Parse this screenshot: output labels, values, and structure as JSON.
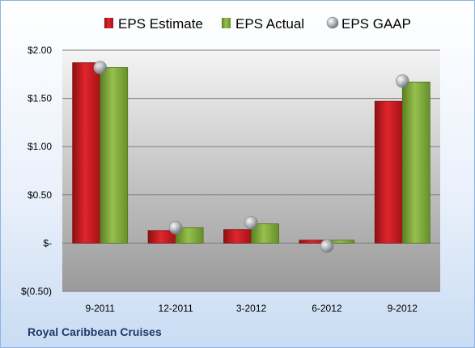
{
  "chart_data": {
    "type": "bar",
    "categories": [
      "9-2011",
      "12-2011",
      "3-2012",
      "6-2012",
      "9-2012"
    ],
    "series": [
      {
        "name": "EPS Estimate",
        "values": [
          1.87,
          0.13,
          0.14,
          0.03,
          1.47
        ],
        "color": "#c0171c",
        "kind": "bar"
      },
      {
        "name": "EPS Actual",
        "values": [
          1.82,
          0.16,
          0.2,
          0.03,
          1.67
        ],
        "color": "#6f9b2e",
        "kind": "bar"
      },
      {
        "name": "EPS GAAP",
        "values": [
          1.82,
          0.16,
          0.21,
          -0.03,
          1.68
        ],
        "color": "#a9acb3",
        "kind": "marker"
      }
    ],
    "ylim": [
      -0.5,
      2.0
    ],
    "yticks": [
      2.0,
      1.5,
      1.0,
      0.5,
      0,
      -0.5
    ],
    "ytick_labels": [
      "$2.00",
      "$1.50",
      "$1.00",
      "$0.50",
      "$-",
      "$(0.50)"
    ],
    "grid": true,
    "legend_position": "top"
  },
  "company": "Royal Caribbean Cruises"
}
